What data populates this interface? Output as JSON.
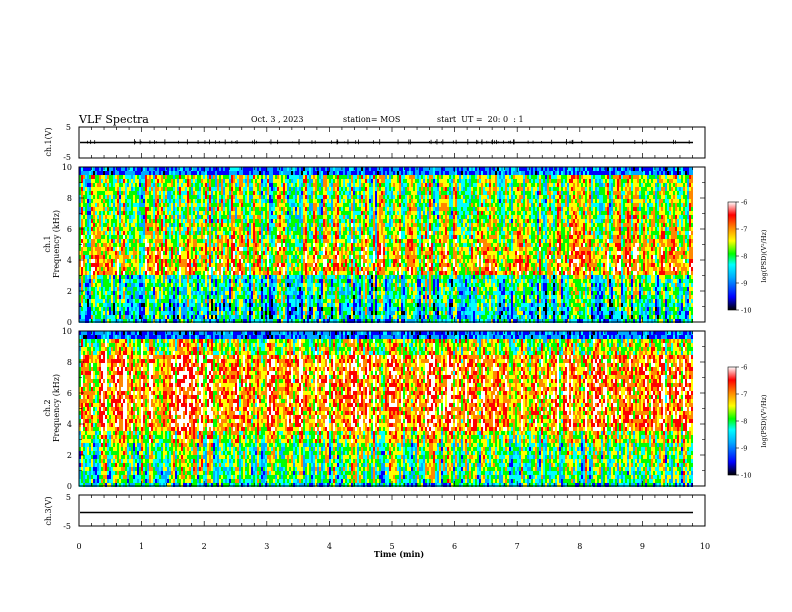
{
  "header": {
    "title": "VLF Spectra",
    "date": "Oct. 3 , 2023",
    "station": "station= MOS",
    "start": "start  UT =  20: 0  : 1"
  },
  "chart_data": [
    {
      "type": "line",
      "id": "ch1-waveform",
      "ylabel": "ch.1(V)",
      "ylim": [
        -5,
        5
      ],
      "yticks": [
        "5",
        "-5"
      ],
      "xlim": [
        0,
        10
      ],
      "baseline": 0,
      "color": "#000000"
    },
    {
      "type": "heatmap",
      "id": "ch1-spectrogram",
      "ylabel": "ch.1\nFrequency (kHz)",
      "ylim": [
        0,
        10
      ],
      "yticks": [
        0,
        2,
        4,
        6,
        8,
        10
      ],
      "xlim": [
        0,
        10
      ],
      "data_end_min": 9.8,
      "colorbar": {
        "label": "log(PSD)(V²/Hz)",
        "range": [
          -10,
          -6
        ],
        "ticks": [
          "-6",
          "-7",
          "-8",
          "-9",
          "-10"
        ]
      }
    },
    {
      "type": "heatmap",
      "id": "ch2-spectrogram",
      "ylabel": "ch.2\nFrequency (kHz)",
      "ylim": [
        0,
        10
      ],
      "yticks": [
        0,
        2,
        4,
        6,
        8,
        10
      ],
      "xlim": [
        0,
        10
      ],
      "data_end_min": 9.8,
      "colorbar": {
        "label": "log(PSD)(V²/Hz)",
        "range": [
          -10,
          -6
        ],
        "ticks": [
          "-6",
          "-7",
          "-8",
          "-9",
          "-10"
        ]
      }
    },
    {
      "type": "line",
      "id": "ch3-waveform",
      "ylabel": "ch.3(V)",
      "ylim": [
        -5,
        5
      ],
      "yticks": [
        "5",
        "-5"
      ],
      "xlim": [
        0,
        10
      ],
      "baseline": 0,
      "color": "#000000",
      "xlabel": "Time (min)",
      "xticks": [
        "0",
        "1",
        "2",
        "3",
        "4",
        "5",
        "6",
        "7",
        "8",
        "9",
        "10"
      ]
    }
  ],
  "colors": {
    "colormap": [
      "#000000",
      "#0000ff",
      "#00aaff",
      "#00ffff",
      "#00ff00",
      "#ffff00",
      "#ff8800",
      "#ff0000",
      "#ffffff"
    ]
  }
}
